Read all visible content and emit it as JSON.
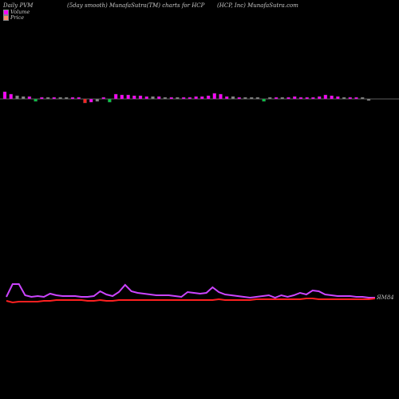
{
  "header": {
    "left": "Daily PVM",
    "center": "(5day smooth) MunafaSutra(TM) charts for HCP",
    "right": "(HCP, Inc) MunafaSutra.com"
  },
  "legend": [
    {
      "label": "Volume",
      "color": "#ff00ff"
    },
    {
      "label": "Price",
      "color": "#ff8c69"
    }
  ],
  "colors": {
    "up": "#ff00ff",
    "down": "#ff2222",
    "neutral": "#888888",
    "green": "#00cc44",
    "axis": "#bbbbbb",
    "price": "#ff2020",
    "smooth": "#cc44ff"
  },
  "chart_data": {
    "type": "bar",
    "title": "(5day smooth) MunafaSutra(TM) charts for HCP",
    "volume_bars": [
      {
        "value": 9,
        "color": "up"
      },
      {
        "value": 6,
        "color": "up"
      },
      {
        "value": 4,
        "color": "neutral"
      },
      {
        "value": 3,
        "color": "neutral"
      },
      {
        "value": 3,
        "color": "up"
      },
      {
        "value": -3,
        "color": "green"
      },
      {
        "value": 2,
        "color": "up"
      },
      {
        "value": 2,
        "color": "neutral"
      },
      {
        "value": 2,
        "color": "up"
      },
      {
        "value": 2,
        "color": "neutral"
      },
      {
        "value": 2,
        "color": "neutral"
      },
      {
        "value": 2,
        "color": "up"
      },
      {
        "value": 2,
        "color": "up"
      },
      {
        "value": -5,
        "color": "down"
      },
      {
        "value": -4,
        "color": "up"
      },
      {
        "value": -3,
        "color": "neutral"
      },
      {
        "value": 2,
        "color": "up"
      },
      {
        "value": -4,
        "color": "green"
      },
      {
        "value": 6,
        "color": "up"
      },
      {
        "value": 5,
        "color": "up"
      },
      {
        "value": 5,
        "color": "up"
      },
      {
        "value": 4,
        "color": "up"
      },
      {
        "value": 4,
        "color": "up"
      },
      {
        "value": 3,
        "color": "up"
      },
      {
        "value": 3,
        "color": "neutral"
      },
      {
        "value": 3,
        "color": "up"
      },
      {
        "value": 2,
        "color": "neutral"
      },
      {
        "value": 2,
        "color": "up"
      },
      {
        "value": 2,
        "color": "neutral"
      },
      {
        "value": 2,
        "color": "up"
      },
      {
        "value": 2,
        "color": "up"
      },
      {
        "value": 3,
        "color": "up"
      },
      {
        "value": 3,
        "color": "up"
      },
      {
        "value": 4,
        "color": "up"
      },
      {
        "value": 7,
        "color": "up"
      },
      {
        "value": 6,
        "color": "up"
      },
      {
        "value": 3,
        "color": "up"
      },
      {
        "value": 3,
        "color": "neutral"
      },
      {
        "value": 2,
        "color": "up"
      },
      {
        "value": 2,
        "color": "neutral"
      },
      {
        "value": 2,
        "color": "neutral"
      },
      {
        "value": 2,
        "color": "neutral"
      },
      {
        "value": -3,
        "color": "green"
      },
      {
        "value": 2,
        "color": "neutral"
      },
      {
        "value": 2,
        "color": "up"
      },
      {
        "value": 2,
        "color": "neutral"
      },
      {
        "value": 2,
        "color": "up"
      },
      {
        "value": 3,
        "color": "up"
      },
      {
        "value": 2,
        "color": "up"
      },
      {
        "value": 2,
        "color": "up"
      },
      {
        "value": 2,
        "color": "up"
      },
      {
        "value": 3,
        "color": "up"
      },
      {
        "value": 5,
        "color": "up"
      },
      {
        "value": 4,
        "color": "up"
      },
      {
        "value": 3,
        "color": "up"
      },
      {
        "value": 2,
        "color": "neutral"
      },
      {
        "value": 2,
        "color": "up"
      },
      {
        "value": 2,
        "color": "up"
      },
      {
        "value": 2,
        "color": "neutral"
      },
      {
        "value": -2,
        "color": "neutral"
      }
    ],
    "price_series": [
      {
        "name": "Price",
        "values": [
          15,
          13,
          14,
          14,
          14,
          14,
          15,
          15,
          16,
          16,
          16,
          16,
          16,
          15,
          15,
          16,
          15,
          15,
          16,
          16,
          16,
          16,
          16,
          16,
          16,
          16,
          16,
          16,
          16,
          16,
          16,
          16,
          16,
          16,
          17,
          16,
          16,
          16,
          16,
          16,
          17,
          17,
          17,
          17,
          17,
          17,
          17,
          17,
          18,
          18,
          17,
          17,
          17,
          17,
          17,
          17,
          17,
          17,
          17,
          18
        ]
      },
      {
        "name": "smooth",
        "values": [
          20,
          36,
          36,
          22,
          20,
          21,
          20,
          24,
          22,
          21,
          21,
          21,
          20,
          20,
          21,
          27,
          23,
          21,
          26,
          35,
          27,
          25,
          24,
          23,
          22,
          22,
          22,
          21,
          20,
          26,
          25,
          24,
          25,
          32,
          26,
          23,
          22,
          21,
          20,
          19,
          20,
          21,
          22,
          19,
          22,
          20,
          22,
          25,
          23,
          28,
          27,
          23,
          22,
          21,
          21,
          21,
          20,
          20,
          19,
          19
        ]
      }
    ],
    "price_label": "ЯМ84"
  }
}
